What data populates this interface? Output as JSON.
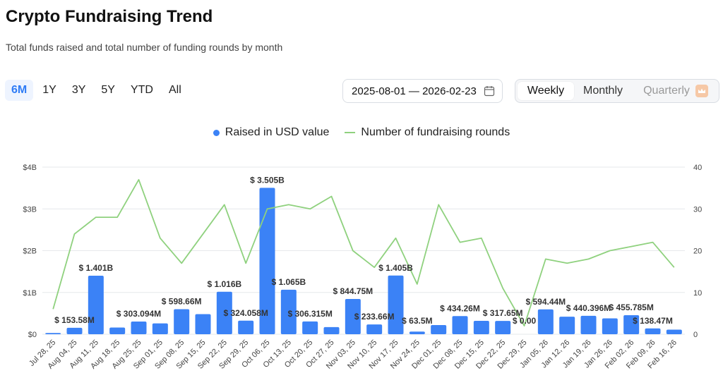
{
  "header": {
    "title": "Crypto Fundraising Trend",
    "subtitle": "Total funds raised and total number of funding rounds by month"
  },
  "range_tabs": [
    {
      "label": "6M",
      "active": true
    },
    {
      "label": "1Y",
      "active": false
    },
    {
      "label": "3Y",
      "active": false
    },
    {
      "label": "5Y",
      "active": false
    },
    {
      "label": "YTD",
      "active": false
    },
    {
      "label": "All",
      "active": false
    }
  ],
  "date_range": {
    "value": "2025-08-01 — 2026-02-23",
    "icon": "calendar-icon"
  },
  "period_tabs": {
    "weekly": "Weekly",
    "monthly": "Monthly",
    "quarterly": "Quarterly",
    "selected": "Weekly",
    "quarterly_badge_icon": "crown-icon"
  },
  "colors": {
    "bar": "#3b82f6",
    "line": "#8fd17e",
    "accent": "#2f7cf6",
    "grid": "#e6e8eb"
  },
  "chart_data": {
    "type": "bar",
    "title": "Crypto Fundraising Trend",
    "legend_placement": "top-center",
    "grid": true,
    "categories": [
      "Jul 28, 25",
      "Aug 04, 25",
      "Aug 11, 25",
      "Aug 18, 25",
      "Aug 25, 25",
      "Sep 01, 25",
      "Sep 08, 25",
      "Sep 15, 25",
      "Sep 22, 25",
      "Sep 29, 25",
      "Oct 06, 25",
      "Oct 13, 25",
      "Oct 20, 25",
      "Oct 27, 25",
      "Nov 03, 25",
      "Nov 10, 25",
      "Nov 17, 25",
      "Nov 24, 25",
      "Dec 01, 25",
      "Dec 08, 25",
      "Dec 15, 25",
      "Dec 22, 25",
      "Dec 29, 25",
      "Jan 05, 26",
      "Jan 12, 26",
      "Jan 19, 26",
      "Jan 26, 26",
      "Feb 02, 26",
      "Feb 09, 26",
      "Feb 16, 26"
    ],
    "series": [
      {
        "name": "Raised in USD value",
        "type": "bar",
        "axis": "left",
        "unit": "USD billions",
        "values": [
          0.03,
          0.15358,
          1.401,
          0.16,
          0.303094,
          0.26,
          0.59866,
          0.48,
          1.016,
          0.324058,
          3.505,
          1.065,
          0.306315,
          0.17,
          0.84475,
          0.23366,
          1.405,
          0.0635,
          0.22,
          0.43426,
          0.32,
          0.31765,
          0.0,
          0.59444,
          0.42,
          0.440396,
          0.38,
          0.455785,
          0.13847,
          0.11
        ],
        "labels": [
          "",
          "$ 153.58M",
          "$ 1.401B",
          "",
          "$ 303.094M",
          "",
          "$ 598.66M",
          "",
          "$ 1.016B",
          "$ 324.058M",
          "$ 3.505B",
          "$ 1.065B",
          "$ 306.315M",
          "",
          "$ 844.75M",
          "$ 233.66M",
          "$ 1.405B",
          "$ 63.5M",
          "",
          "$ 434.26M",
          "",
          "$ 317.65M",
          "$ 0.00",
          "$ 594.44M",
          "",
          "$ 440.396M",
          "",
          "$ 455.785M",
          "$ 138.47M",
          ""
        ]
      },
      {
        "name": "Number of fundraising rounds",
        "type": "line",
        "axis": "right",
        "values": [
          6,
          24,
          28,
          28,
          37,
          23,
          17,
          24,
          31,
          17,
          30,
          31,
          30,
          33,
          20,
          16,
          23,
          12,
          31,
          22,
          23,
          11,
          2,
          18,
          17,
          18,
          20,
          21,
          22,
          16
        ]
      }
    ],
    "y_left": {
      "min": 0,
      "max": 4,
      "ticks": [
        0,
        1,
        2,
        3,
        4
      ],
      "tick_labels": [
        "$0",
        "$1B",
        "$2B",
        "$3B",
        "$4B"
      ]
    },
    "y_right": {
      "min": 0,
      "max": 40,
      "ticks": [
        0,
        10,
        20,
        30,
        40
      ],
      "tick_labels": [
        "0",
        "10",
        "20",
        "30",
        "40"
      ]
    }
  }
}
